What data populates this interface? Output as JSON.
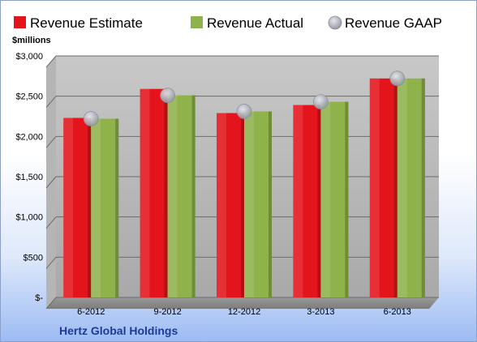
{
  "chart_data": {
    "type": "bar",
    "ylabel": "$millions",
    "company": "Hertz Global Holdings",
    "categories": [
      "6-2012",
      "9-2012",
      "12-2012",
      "3-2013",
      "6-2013"
    ],
    "series": [
      {
        "name": "Revenue Estimate",
        "color": "#e3141b",
        "marker": "bar",
        "values": [
          2230,
          2590,
          2290,
          2390,
          2720
        ]
      },
      {
        "name": "Revenue Actual",
        "color": "#8fb24a",
        "marker": "bar",
        "values": [
          2220,
          2510,
          2310,
          2430,
          2720
        ]
      },
      {
        "name": "Revenue GAAP",
        "color": "#b9bcc4",
        "marker": "circle",
        "values": [
          2220,
          2510,
          2310,
          2430,
          2720
        ]
      }
    ],
    "ylim": [
      0,
      3000
    ],
    "yticks": [
      0,
      500,
      1000,
      1500,
      2000,
      2500,
      3000
    ],
    "ytick_labels": [
      "$-",
      "$500",
      "$1,000",
      "$1,500",
      "$2,000",
      "$2,500",
      "$3,000"
    ],
    "grid": true,
    "legend_position": "top"
  }
}
